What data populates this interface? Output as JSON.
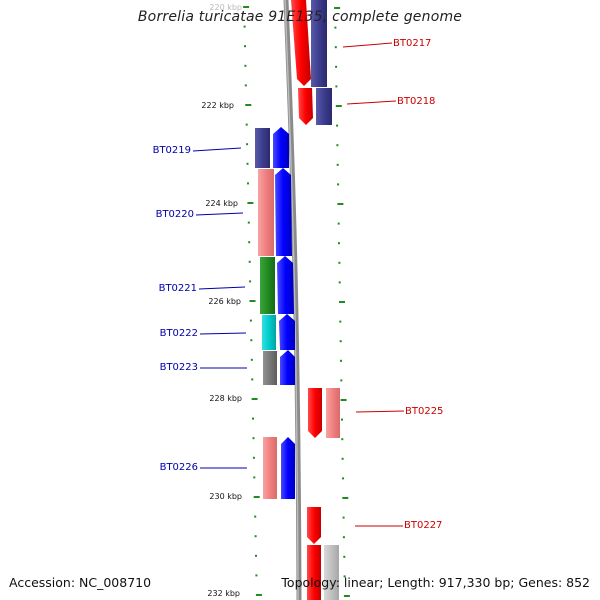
{
  "title": "Borrelia turicatae 91E135, complete genome",
  "footer": {
    "accession": "Accession: NC_008710",
    "topology": "Topology: linear; Length: 917,330 bp; Genes: 852"
  },
  "diagram": {
    "ruler_labels": [
      {
        "label": "220 kbp",
        "kbp": 220
      },
      {
        "label": "222 kbp",
        "kbp": 222
      },
      {
        "label": "224 kbp",
        "kbp": 224
      },
      {
        "label": "226 kbp",
        "kbp": 226
      },
      {
        "label": "228 kbp",
        "kbp": 228
      },
      {
        "label": "230 kbp",
        "kbp": 230
      },
      {
        "label": "232 kbp",
        "kbp": 232
      }
    ],
    "genes_forward": [
      {
        "name": "BT0217",
        "color": "#cc0000"
      },
      {
        "name": "BT0218",
        "color": "#cc0000"
      },
      {
        "name": "BT0225",
        "color": "#cc0000"
      },
      {
        "name": "BT0227",
        "color": "#cc0000"
      }
    ],
    "genes_reverse": [
      {
        "name": "BT0219",
        "color": "#0000aa"
      },
      {
        "name": "BT0220",
        "color": "#0000aa"
      },
      {
        "name": "BT0221",
        "color": "#0000aa"
      },
      {
        "name": "BT0222",
        "color": "#0000aa"
      },
      {
        "name": "BT0223",
        "color": "#0000aa"
      },
      {
        "name": "BT0226",
        "color": "#0000aa"
      }
    ],
    "colors": {
      "forward_arrow": "#ff0000",
      "reverse_arrow": "#0000ff",
      "tick": "#228b22",
      "backbone": "#808080",
      "cog_navy": "#3d3d8f",
      "cog_pink": "#f08080",
      "cog_green": "#228b22",
      "cog_cyan": "#00cccc",
      "cog_gray": "#777777",
      "cog_lightgray": "#c0c0c0"
    }
  }
}
